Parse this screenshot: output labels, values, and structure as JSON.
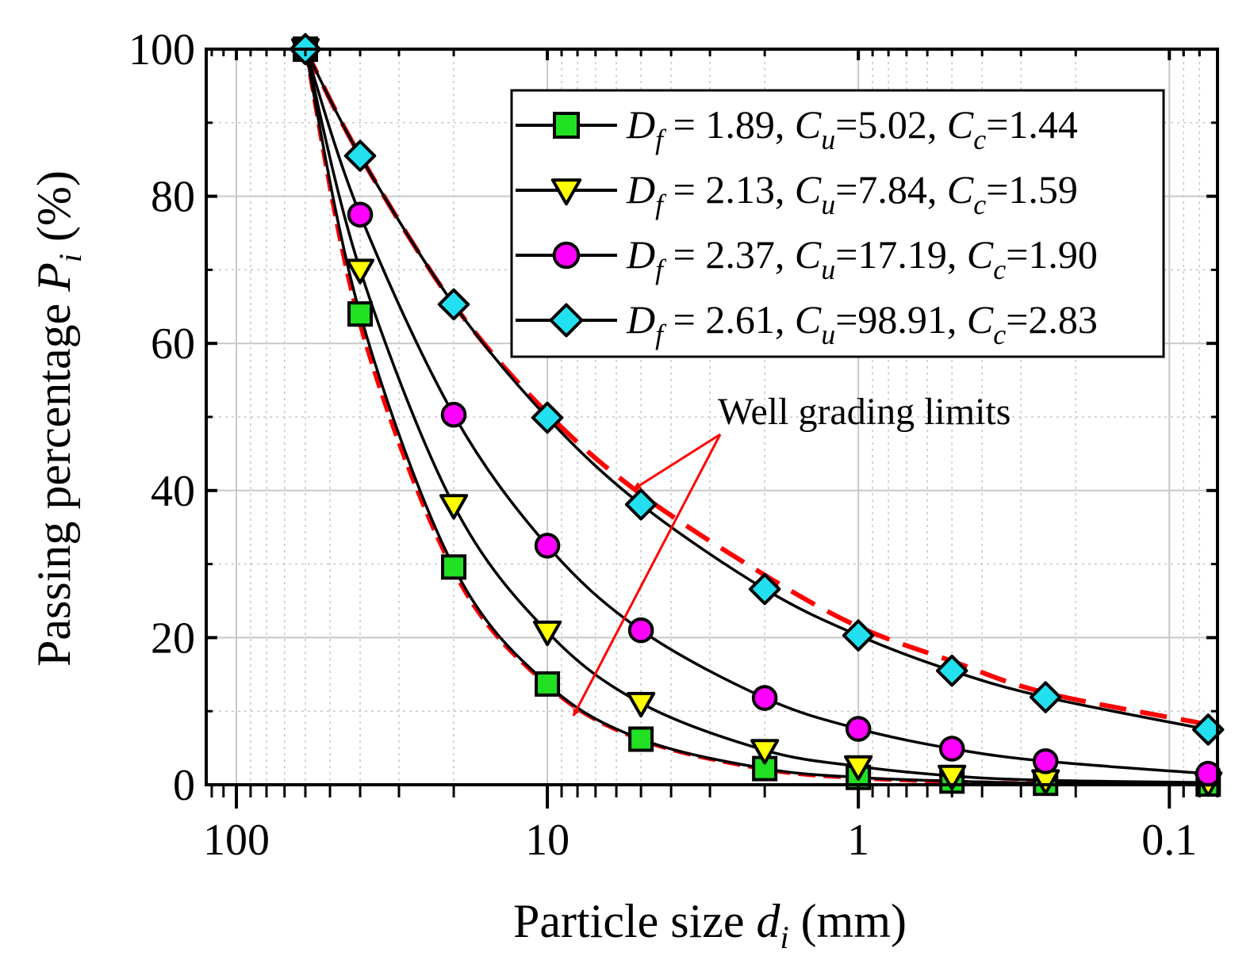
{
  "chart_data": {
    "type": "line",
    "xlabel": "Particle size d_i (mm)",
    "xlabel_parts": {
      "main": "Particle size ",
      "var": "d",
      "sub": "i",
      "unit": " (mm)"
    },
    "ylabel": "Passing percentage P_i (%)",
    "ylabel_parts": {
      "main": "Passing percentage ",
      "var": "P",
      "sub": "i",
      "unit": " (%)"
    },
    "x_scale": "log",
    "x_reversed": true,
    "xlim": [
      125,
      0.07
    ],
    "ylim": [
      0,
      100
    ],
    "x_ticks": [
      100,
      10,
      1,
      0.1
    ],
    "x_tick_labels": [
      "100",
      "10",
      "1",
      "0.1"
    ],
    "y_ticks": [
      0,
      20,
      40,
      60,
      80,
      100
    ],
    "y_tick_labels": [
      "0",
      "20",
      "40",
      "60",
      "80",
      "100"
    ],
    "grid": true,
    "legend_position": "top-right",
    "x": [
      60,
      40,
      20,
      10,
      5,
      2,
      1,
      0.5,
      0.25,
      0.075
    ],
    "series": [
      {
        "name": "D_f = 1.89, C_u=5.02, C_c=1.44",
        "label_parts": [
          "D",
          "f",
          " = 1.89, ",
          "C",
          "u",
          "=5.02, ",
          "C",
          "c",
          "=1.44"
        ],
        "marker": "square",
        "marker_color": "#22e022",
        "values": [
          100,
          64,
          29.6,
          13.7,
          6.2,
          2.2,
          1.0,
          0.5,
          0.2,
          0.1
        ]
      },
      {
        "name": "D_f = 2.13, C_u=7.84, C_c=1.59",
        "label_parts": [
          "D",
          "f",
          " = 2.13, ",
          "C",
          "u",
          "=7.84, ",
          "C",
          "c",
          "=1.59"
        ],
        "marker": "triangle-down",
        "marker_color": "#ffff00",
        "values": [
          100,
          70,
          38,
          20.8,
          11.1,
          4.7,
          2.5,
          1.2,
          0.6,
          0.3
        ]
      },
      {
        "name": "D_f = 2.37, C_u=17.19, C_c=1.90",
        "label_parts": [
          "D",
          "f",
          " = 2.37, ",
          "C",
          "u",
          "=17.19, ",
          "C",
          "c",
          "=1.90"
        ],
        "marker": "circle",
        "marker_color": "#ff00ff",
        "values": [
          100,
          77.5,
          50.3,
          32.5,
          21,
          11.8,
          7.6,
          4.9,
          3.2,
          1.5
        ]
      },
      {
        "name": "D_f = 2.61, C_u=98.91, C_c=2.83",
        "label_parts": [
          "D",
          "f",
          " = 2.61, ",
          "C",
          "u",
          "=98.91, ",
          "C",
          "c",
          "=2.83"
        ],
        "marker": "diamond",
        "marker_color": "#22e0f0",
        "values": [
          100,
          85.5,
          65.3,
          49.9,
          38.1,
          26.6,
          20.3,
          15.5,
          11.9,
          7.5
        ]
      }
    ],
    "limit_lines": [
      {
        "name": "upper well grading limit",
        "color": "#ff0000",
        "x": [
          60,
          40,
          20,
          10,
          5,
          2,
          1,
          0.5,
          0.25,
          0.075
        ],
        "values": [
          100,
          85.5,
          65.3,
          50.5,
          39.5,
          28.5,
          21.5,
          16.8,
          12.5,
          8.2
        ]
      },
      {
        "name": "lower well grading limit",
        "color": "#ff0000",
        "x": [
          60,
          40,
          20,
          10,
          5,
          2,
          1,
          0.5,
          0.25,
          0.075
        ],
        "values": [
          100,
          62.5,
          29,
          13.5,
          6.1,
          2.1,
          0.9,
          0.4,
          0.2,
          0.1
        ]
      }
    ],
    "annotations": [
      {
        "text": "Well grading limits",
        "arrow_color": "#ff0000",
        "targets": [
          "upper well grading limit",
          "lower well grading limit"
        ]
      }
    ]
  }
}
